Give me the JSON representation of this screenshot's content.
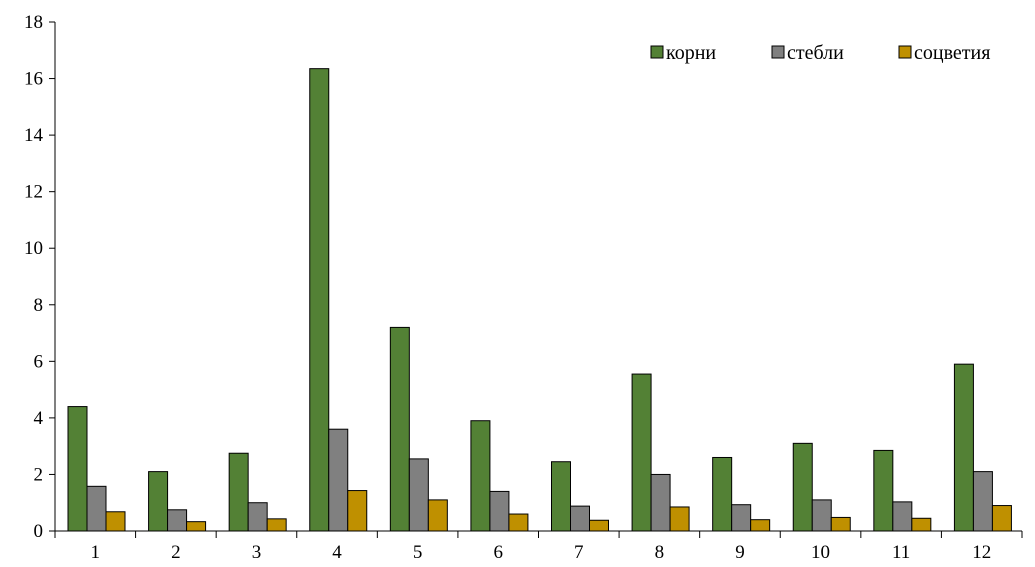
{
  "chart_data": {
    "type": "bar",
    "categories": [
      "1",
      "2",
      "3",
      "4",
      "5",
      "6",
      "7",
      "8",
      "9",
      "10",
      "11",
      "12"
    ],
    "series": [
      {
        "name": "корни",
        "color": "#538135",
        "values": [
          4.4,
          2.1,
          2.75,
          16.35,
          7.2,
          3.9,
          2.45,
          5.55,
          2.6,
          3.1,
          2.85,
          5.9
        ]
      },
      {
        "name": "стебли",
        "color": "#808080",
        "values": [
          1.58,
          0.75,
          1.0,
          3.6,
          2.55,
          1.4,
          0.88,
          2.0,
          0.93,
          1.1,
          1.03,
          2.1
        ]
      },
      {
        "name": "соцветия",
        "color": "#BF9000",
        "values": [
          0.68,
          0.33,
          0.43,
          1.43,
          1.1,
          0.6,
          0.38,
          0.85,
          0.4,
          0.48,
          0.45,
          0.9
        ]
      }
    ],
    "yticks": [
      "0",
      "2",
      "4",
      "6",
      "8",
      "10",
      "12",
      "14",
      "16",
      "18"
    ],
    "ylim": [
      0,
      18
    ],
    "legend_position": "top-right",
    "grid": false
  }
}
